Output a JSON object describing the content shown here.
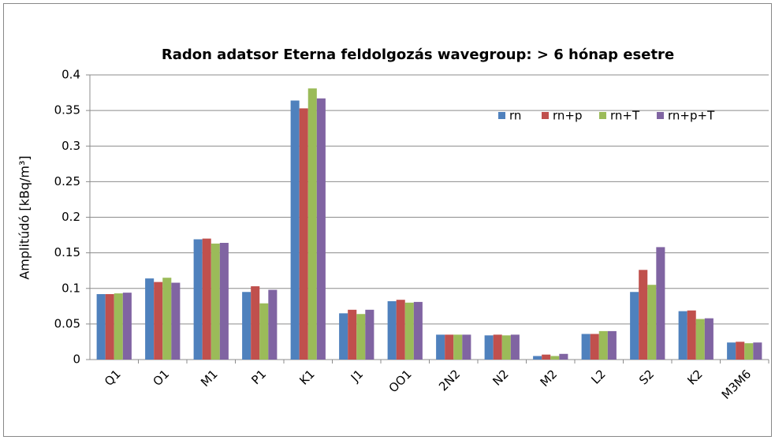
{
  "chart_data": {
    "type": "bar",
    "title": "Radon adatsor Eterna feldolgozás wavegroup: > 6 hónap esetre",
    "y_label": "Amplitúdó [kBq/m³]",
    "categories": [
      "Q1",
      "O1",
      "M1",
      "P1",
      "K1",
      "J1",
      "OO1",
      "2N2",
      "N2",
      "M2",
      "L2",
      "S2",
      "K2",
      "M3M6"
    ],
    "series": [
      {
        "name": "rn",
        "color": "#4f81bd",
        "values": [
          0.092,
          0.114,
          0.169,
          0.095,
          0.364,
          0.065,
          0.082,
          0.035,
          0.034,
          0.005,
          0.036,
          0.095,
          0.068,
          0.024
        ]
      },
      {
        "name": "rn+p",
        "color": "#c0504d",
        "values": [
          0.092,
          0.109,
          0.17,
          0.103,
          0.353,
          0.07,
          0.084,
          0.035,
          0.035,
          0.007,
          0.036,
          0.126,
          0.069,
          0.025
        ]
      },
      {
        "name": "rn+T",
        "color": "#9bbb59",
        "values": [
          0.093,
          0.115,
          0.163,
          0.079,
          0.381,
          0.064,
          0.08,
          0.035,
          0.034,
          0.005,
          0.04,
          0.105,
          0.057,
          0.023
        ]
      },
      {
        "name": "rn+p+T",
        "color": "#8064a2",
        "values": [
          0.094,
          0.108,
          0.164,
          0.098,
          0.367,
          0.07,
          0.081,
          0.035,
          0.035,
          0.008,
          0.04,
          0.158,
          0.058,
          0.024
        ]
      }
    ],
    "ylim": [
      0,
      0.4
    ],
    "yticks": [
      0,
      0.05,
      0.1,
      0.15,
      0.2,
      0.25,
      0.3,
      0.35,
      0.4
    ],
    "grid": true,
    "legend": "top-right"
  }
}
